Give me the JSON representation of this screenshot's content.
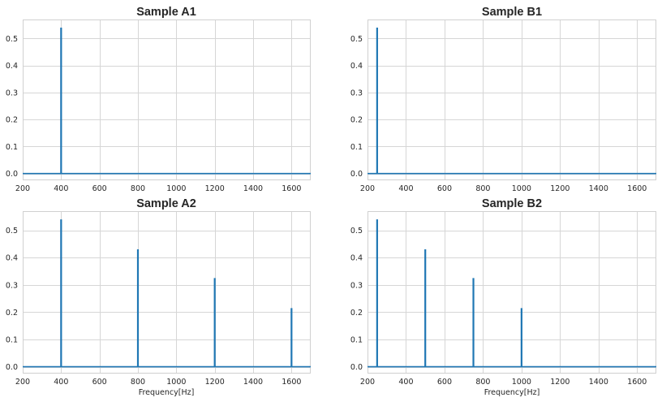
{
  "chart_data": [
    {
      "type": "line",
      "title": "Sample A1",
      "xlabel": "",
      "ylabel": "",
      "xlim": [
        200,
        1700
      ],
      "ylim": [
        -0.025,
        0.57
      ],
      "xticks": [
        200,
        400,
        600,
        800,
        1000,
        1200,
        1400,
        1600
      ],
      "yticks": [
        0.0,
        0.1,
        0.2,
        0.3,
        0.4,
        0.5
      ],
      "grid": true,
      "color": "#1f77b4",
      "baseline": 0.0,
      "peaks": [
        {
          "x": 400,
          "y": 0.54
        }
      ]
    },
    {
      "type": "line",
      "title": "Sample B1",
      "xlabel": "",
      "ylabel": "",
      "xlim": [
        200,
        1700
      ],
      "ylim": [
        -0.025,
        0.57
      ],
      "xticks": [
        200,
        400,
        600,
        800,
        1000,
        1200,
        1400,
        1600
      ],
      "yticks": [
        0.0,
        0.1,
        0.2,
        0.3,
        0.4,
        0.5
      ],
      "grid": true,
      "color": "#1f77b4",
      "baseline": 0.0,
      "peaks": [
        {
          "x": 250,
          "y": 0.54
        }
      ]
    },
    {
      "type": "line",
      "title": "Sample A2",
      "xlabel": "Frequency[Hz]",
      "ylabel": "",
      "xlim": [
        200,
        1700
      ],
      "ylim": [
        -0.025,
        0.57
      ],
      "xticks": [
        200,
        400,
        600,
        800,
        1000,
        1200,
        1400,
        1600
      ],
      "yticks": [
        0.0,
        0.1,
        0.2,
        0.3,
        0.4,
        0.5
      ],
      "grid": true,
      "color": "#1f77b4",
      "baseline": 0.0,
      "peaks": [
        {
          "x": 400,
          "y": 0.54
        },
        {
          "x": 800,
          "y": 0.43
        },
        {
          "x": 1200,
          "y": 0.325
        },
        {
          "x": 1600,
          "y": 0.215
        }
      ]
    },
    {
      "type": "line",
      "title": "Sample B2",
      "xlabel": "Frequency[Hz]",
      "ylabel": "",
      "xlim": [
        200,
        1700
      ],
      "ylim": [
        -0.025,
        0.57
      ],
      "xticks": [
        200,
        400,
        600,
        800,
        1000,
        1200,
        1400,
        1600
      ],
      "yticks": [
        0.0,
        0.1,
        0.2,
        0.3,
        0.4,
        0.5
      ],
      "grid": true,
      "color": "#1f77b4",
      "baseline": 0.0,
      "peaks": [
        {
          "x": 250,
          "y": 0.54
        },
        {
          "x": 500,
          "y": 0.43
        },
        {
          "x": 750,
          "y": 0.325
        },
        {
          "x": 1000,
          "y": 0.215
        }
      ]
    }
  ]
}
